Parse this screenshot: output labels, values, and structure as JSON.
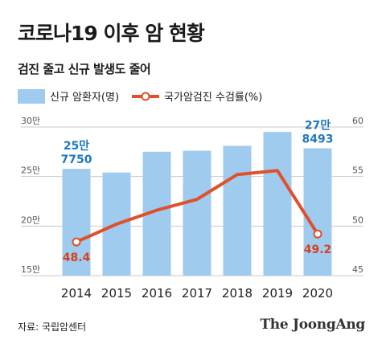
{
  "header": {
    "title": "코로나19 이후 암 현황",
    "subtitle": "검진 줄고 신규 발생도 줄어"
  },
  "colors": {
    "bar": "#9fcbef",
    "line": "#e0502a",
    "bar_label": "#1f78c0",
    "line_label": "#d8401c"
  },
  "chart_data": {
    "type": "bar",
    "categories": [
      "2014",
      "2015",
      "2016",
      "2017",
      "2018",
      "2019",
      "2020"
    ],
    "series": [
      {
        "name": "신규 암환자(명)",
        "type": "bar",
        "axis": "left",
        "values": [
          257750,
          254000,
          275000,
          276000,
          281000,
          295000,
          278493
        ]
      },
      {
        "name": "국가암검진 수검률(%)",
        "type": "line",
        "axis": "right",
        "values": [
          48.4,
          50.2,
          51.6,
          52.7,
          55.2,
          55.6,
          49.2
        ]
      }
    ],
    "y_left": {
      "min": 150000,
      "max": 300000,
      "ticks": [
        150000,
        200000,
        250000,
        300000
      ],
      "tick_labels": [
        "15만",
        "20만",
        "25만",
        "30만"
      ]
    },
    "y_right": {
      "min": 45,
      "max": 60,
      "ticks": [
        45,
        50,
        55,
        60
      ],
      "tick_labels": [
        "45",
        "50",
        "55",
        "60"
      ]
    },
    "bar_labels": [
      {
        "index": 0,
        "lines": [
          "25만",
          "7750"
        ]
      },
      {
        "index": 6,
        "lines": [
          "27만",
          "8493"
        ]
      }
    ],
    "line_labels": [
      {
        "index": 0,
        "text": "48.4"
      },
      {
        "index": 6,
        "text": "49.2"
      }
    ]
  },
  "footer": {
    "source": "자료: 국립암센터",
    "brand": "The JoongAng"
  }
}
